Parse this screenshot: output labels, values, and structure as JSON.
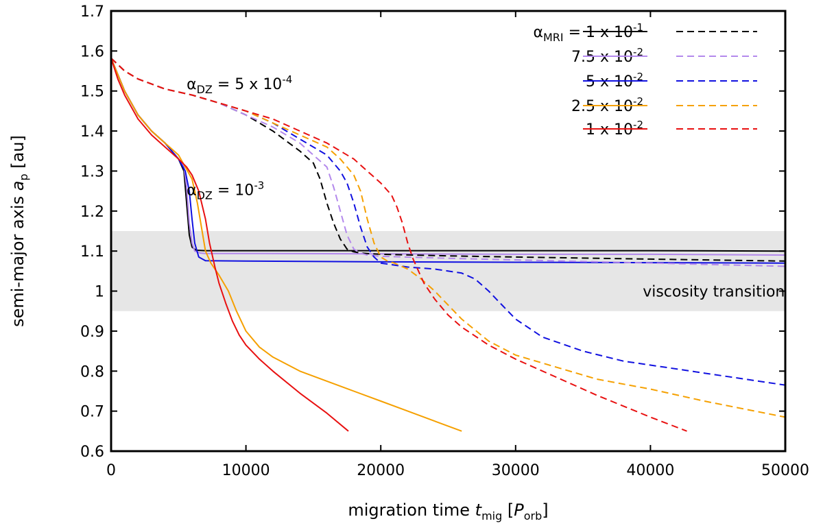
{
  "chart_data": {
    "type": "line",
    "xlabel": {
      "prefix": "migration time ",
      "symbol": "t",
      "sub": "mig",
      "unit_open": " [",
      "unit_symbol": "P",
      "unit_sub": "orb",
      "unit_close": "]"
    },
    "ylabel": {
      "prefix": "semi-major axis ",
      "symbol": "a",
      "sub": "p",
      "suffix": " [au]"
    },
    "xlim": [
      0,
      50000
    ],
    "ylim": [
      0.6,
      1.7
    ],
    "xticks": [
      0,
      10000,
      20000,
      30000,
      40000,
      50000
    ],
    "yticks": [
      0.6,
      0.7,
      0.8,
      0.9,
      1.0,
      1.1,
      1.2,
      1.3,
      1.4,
      1.5,
      1.6,
      1.7
    ],
    "xtick_labels": [
      "0",
      "10000",
      "20000",
      "30000",
      "40000",
      "50000"
    ],
    "ytick_labels": [
      "0.6",
      "0.7",
      "0.8",
      "0.9",
      "1",
      "1.1",
      "1.2",
      "1.3",
      "1.4",
      "1.5",
      "1.6",
      "1.7"
    ],
    "shaded_band": {
      "y0": 0.95,
      "y1": 1.15,
      "label": "viscosity transition",
      "color": "#e6e6e6"
    },
    "annotations": [
      {
        "base": "α",
        "sub": "DZ",
        "mid": " = 5 x 10",
        "sup": "-4",
        "x": 5600,
        "y": 1.505
      },
      {
        "base": "α",
        "sub": "DZ",
        "mid": " = 10",
        "sup": "-3",
        "x": 5600,
        "y": 1.24
      }
    ],
    "legend": {
      "header": {
        "base": "α",
        "sub": "MRI",
        "mid": " = "
      },
      "labels": [
        {
          "mant": "1 x 10",
          "exp": "-1"
        },
        {
          "mant": "7.5 x 10",
          "exp": "-2"
        },
        {
          "mant": "5 x 10",
          "exp": "-2"
        },
        {
          "mant": "2.5 x 10",
          "exp": "-2"
        },
        {
          "mant": "1 x 10",
          "exp": "-2"
        }
      ],
      "placement": "top-right",
      "columns": [
        "solid: αDZ = 10^-3",
        "dashed: αDZ = 5 x 10^-4"
      ]
    },
    "series": [
      {
        "name": "αMRI = 1e-1, αDZ = 1e-3",
        "color": "#000000",
        "style": "solid",
        "x": [
          0,
          1000,
          2000,
          3000,
          4000,
          5000,
          5400,
          5600,
          5800,
          6000,
          6300,
          7000,
          10000,
          20000,
          30000,
          40000,
          50000
        ],
        "y": [
          1.582,
          1.5,
          1.44,
          1.4,
          1.37,
          1.33,
          1.3,
          1.22,
          1.14,
          1.11,
          1.102,
          1.101,
          1.101,
          1.101,
          1.101,
          1.101,
          1.1
        ]
      },
      {
        "name": "αMRI = 7.5e-2, αDZ = 1e-3",
        "color": "#b388ec",
        "style": "solid",
        "x": [
          0,
          1000,
          2000,
          3000,
          4000,
          5000,
          5400,
          5600,
          5800,
          6000,
          6200,
          6600,
          7000,
          10000,
          20000,
          30000,
          40000,
          50000
        ],
        "y": [
          1.582,
          1.5,
          1.44,
          1.4,
          1.37,
          1.33,
          1.31,
          1.26,
          1.17,
          1.12,
          1.1,
          1.095,
          1.094,
          1.094,
          1.093,
          1.092,
          1.092,
          1.09
        ]
      },
      {
        "name": "αMRI = 5e-2, αDZ = 1e-3",
        "color": "#1010e0",
        "style": "solid",
        "x": [
          0,
          1000,
          2000,
          3000,
          4000,
          5000,
          5500,
          5800,
          6000,
          6200,
          6500,
          7000,
          10000,
          20000,
          30000,
          40000,
          50000
        ],
        "y": [
          1.582,
          1.5,
          1.44,
          1.4,
          1.37,
          1.33,
          1.3,
          1.25,
          1.18,
          1.12,
          1.085,
          1.076,
          1.075,
          1.073,
          1.072,
          1.071,
          1.07
        ]
      },
      {
        "name": "αMRI = 2.5e-2, αDZ = 1e-3",
        "color": "#f5a000",
        "style": "solid",
        "x": [
          0,
          1000,
          2000,
          3000,
          4000,
          5000,
          6000,
          6400,
          6700,
          7000,
          7400,
          8000,
          8700,
          9300,
          10000,
          11000,
          12000,
          14000,
          16000,
          18000,
          20000,
          22000,
          24000,
          26000
        ],
        "y": [
          1.582,
          1.5,
          1.44,
          1.4,
          1.37,
          1.34,
          1.28,
          1.22,
          1.16,
          1.1,
          1.07,
          1.04,
          1.0,
          0.95,
          0.9,
          0.86,
          0.835,
          0.8,
          0.775,
          0.75,
          0.725,
          0.7,
          0.675,
          0.65
        ]
      },
      {
        "name": "αMRI = 1e-2, αDZ = 1e-3",
        "color": "#e81010",
        "style": "solid",
        "x": [
          0,
          500,
          1000,
          1500,
          2000,
          3000,
          4000,
          5000,
          5600,
          6000,
          6500,
          7000,
          7300,
          7700,
          8000,
          8500,
          9000,
          9500,
          10000,
          11000,
          12000,
          14000,
          16000,
          17600
        ],
        "y": [
          1.582,
          1.53,
          1.49,
          1.46,
          1.43,
          1.39,
          1.36,
          1.33,
          1.31,
          1.29,
          1.25,
          1.18,
          1.12,
          1.06,
          1.02,
          0.97,
          0.925,
          0.89,
          0.865,
          0.83,
          0.8,
          0.745,
          0.695,
          0.65
        ]
      },
      {
        "name": "αMRI = 1e-1, αDZ = 5e-4",
        "color": "#000000",
        "style": "dashed",
        "x": [
          0,
          1000,
          2000,
          4000,
          6000,
          8000,
          10000,
          12000,
          14000,
          15000,
          15500,
          16000,
          16500,
          17000,
          17500,
          18000,
          18500,
          19000,
          20000,
          25000,
          30000,
          40000,
          50000
        ],
        "y": [
          1.582,
          1.55,
          1.53,
          1.505,
          1.49,
          1.47,
          1.44,
          1.4,
          1.35,
          1.32,
          1.28,
          1.22,
          1.17,
          1.13,
          1.105,
          1.098,
          1.095,
          1.094,
          1.092,
          1.088,
          1.085,
          1.08,
          1.075
        ]
      },
      {
        "name": "αMRI = 7.5e-2, αDZ = 5e-4",
        "color": "#b388ec",
        "style": "dashed",
        "x": [
          0,
          1000,
          2000,
          4000,
          6000,
          8000,
          10000,
          12000,
          14000,
          16000,
          16500,
          17000,
          17500,
          18000,
          18500,
          19000,
          20000,
          25000,
          30000,
          40000,
          50000
        ],
        "y": [
          1.582,
          1.55,
          1.53,
          1.505,
          1.49,
          1.47,
          1.44,
          1.41,
          1.37,
          1.31,
          1.26,
          1.2,
          1.14,
          1.105,
          1.095,
          1.09,
          1.087,
          1.082,
          1.078,
          1.07,
          1.062
        ]
      },
      {
        "name": "αMRI = 5e-2, αDZ = 5e-4",
        "color": "#1010e0",
        "style": "dashed",
        "x": [
          0,
          1000,
          2000,
          4000,
          6000,
          8000,
          10000,
          12000,
          14000,
          16000,
          17000,
          17500,
          18000,
          18500,
          19000,
          19500,
          20000,
          22000,
          24000,
          26000,
          27000,
          28000,
          29000,
          30000,
          32000,
          35000,
          38000,
          41000,
          44000,
          47000,
          50000
        ],
        "y": [
          1.582,
          1.55,
          1.53,
          1.505,
          1.49,
          1.47,
          1.45,
          1.42,
          1.38,
          1.34,
          1.3,
          1.27,
          1.22,
          1.16,
          1.11,
          1.085,
          1.07,
          1.06,
          1.055,
          1.045,
          1.03,
          1.0,
          0.965,
          0.93,
          0.885,
          0.85,
          0.825,
          0.81,
          0.795,
          0.78,
          0.765
        ]
      },
      {
        "name": "αMRI = 2.5e-2, αDZ = 5e-4",
        "color": "#f5a000",
        "style": "dashed",
        "x": [
          0,
          1000,
          2000,
          4000,
          6000,
          8000,
          10000,
          12000,
          14000,
          16000,
          17000,
          18000,
          18500,
          19000,
          19500,
          20000,
          20500,
          21000,
          22000,
          23000,
          24000,
          25000,
          26000,
          28000,
          30000,
          33000,
          36000,
          40000,
          44000,
          47000,
          50000
        ],
        "y": [
          1.582,
          1.55,
          1.53,
          1.505,
          1.49,
          1.47,
          1.45,
          1.42,
          1.39,
          1.36,
          1.33,
          1.29,
          1.25,
          1.18,
          1.12,
          1.085,
          1.075,
          1.07,
          1.055,
          1.03,
          1.0,
          0.965,
          0.93,
          0.875,
          0.84,
          0.81,
          0.78,
          0.755,
          0.725,
          0.705,
          0.685
        ]
      },
      {
        "name": "αMRI = 1e-2, αDZ = 5e-4",
        "color": "#e81010",
        "style": "dashed",
        "x": [
          0,
          1000,
          2000,
          4000,
          6000,
          8000,
          10000,
          12000,
          14000,
          16000,
          18000,
          19000,
          20000,
          20800,
          21200,
          21600,
          22000,
          22400,
          22800,
          23200,
          24000,
          25000,
          26000,
          28000,
          30000,
          33000,
          36000,
          40000,
          42700
        ],
        "y": [
          1.582,
          1.55,
          1.53,
          1.505,
          1.49,
          1.47,
          1.45,
          1.43,
          1.4,
          1.37,
          1.33,
          1.3,
          1.27,
          1.24,
          1.21,
          1.17,
          1.12,
          1.08,
          1.05,
          1.02,
          0.98,
          0.94,
          0.91,
          0.865,
          0.83,
          0.785,
          0.74,
          0.685,
          0.65
        ]
      }
    ]
  }
}
